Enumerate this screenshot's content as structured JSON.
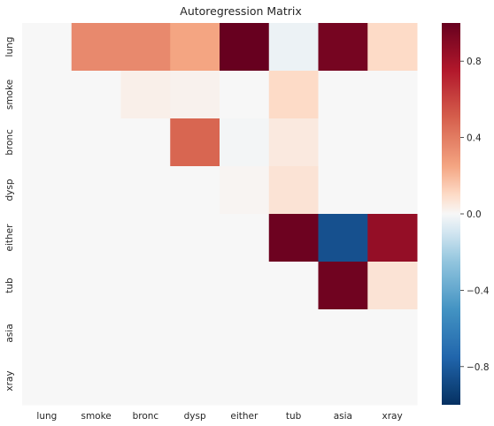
{
  "chart_data": {
    "type": "heatmap",
    "title": "Autoregression Matrix",
    "x_categories": [
      "lung",
      "smoke",
      "bronc",
      "dysp",
      "either",
      "tub",
      "asia",
      "xray"
    ],
    "y_categories": [
      "lung",
      "smoke",
      "bronc",
      "dysp",
      "either",
      "tub",
      "asia",
      "xray"
    ],
    "values": [
      [
        0.0,
        0.35,
        0.35,
        0.25,
        1.0,
        -0.03,
        0.95,
        0.1
      ],
      [
        0.0,
        0.0,
        0.03,
        0.02,
        0.0,
        0.1,
        0.0,
        0.0
      ],
      [
        0.0,
        0.0,
        0.0,
        0.48,
        -0.01,
        0.05,
        0.0,
        0.0
      ],
      [
        0.0,
        0.0,
        0.0,
        0.0,
        0.01,
        0.07,
        0.0,
        0.0
      ],
      [
        0.0,
        0.0,
        0.0,
        0.0,
        0.0,
        0.98,
        -0.85,
        0.85
      ],
      [
        0.0,
        0.0,
        0.0,
        0.0,
        0.0,
        0.0,
        0.97,
        0.07
      ],
      [
        0.0,
        0.0,
        0.0,
        0.0,
        0.0,
        0.0,
        0.0,
        0.0
      ],
      [
        0.0,
        0.0,
        0.0,
        0.0,
        0.0,
        0.0,
        0.0,
        0.0
      ]
    ],
    "colorbar": {
      "vmin": -1.0,
      "vmax": 1.0,
      "ticks": [
        0.8,
        0.4,
        0.0,
        -0.4,
        -0.8
      ],
      "tick_labels": [
        "0.8",
        "0.4",
        "0.0",
        "−0.4",
        "−0.8"
      ],
      "colormap": "RdBu_r"
    },
    "grid": false
  }
}
